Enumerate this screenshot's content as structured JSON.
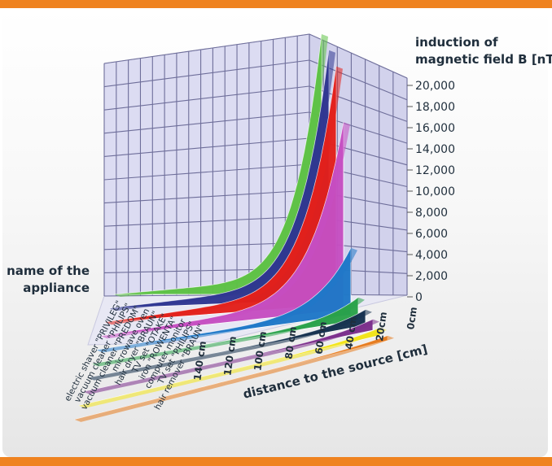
{
  "chart_data": {
    "type": "area",
    "title": "",
    "ylabel": "induction of magnetic field B [nT]",
    "xlabel": "distance to the source [cm]",
    "zlabel": "name of the appliance",
    "ylim": [
      0,
      20000
    ],
    "y_ticks": [
      "20,000",
      "18,000",
      "16,000",
      "14,000",
      "12,000",
      "10,000",
      "8,000",
      "6,000",
      "4,000",
      "2,000",
      "0"
    ],
    "x_ticks": [
      "0cm",
      "20cm",
      "40 cm",
      "60 cm",
      "80 cm",
      "100 cm",
      "120 cm",
      "140 cm"
    ],
    "grid": true,
    "series": [
      {
        "name": "electric shaver \"PRIVILEG\"",
        "color": "#5ec245",
        "peak": 20000
      },
      {
        "name": "vacuum cleaner \"PHILIPS\"",
        "color": "#2f3691",
        "peak": 20000
      },
      {
        "name": "vacuum cleaner \"PREDOM\"",
        "color": "#e3201b",
        "peak": 20000
      },
      {
        "name": "microwave oven",
        "color": "#c64fc2",
        "peak": 16500
      },
      {
        "name": "hair dryer \"BRAUN\"",
        "color": "#1f78c8",
        "peak": 6200
      },
      {
        "name": "TV set \"OTAKE\"",
        "color": "#2aa24a",
        "peak": 2200
      },
      {
        "name": "iron \"ROWENTA\"",
        "color": "#16324f",
        "peak": 1600
      },
      {
        "name": "computer monitor",
        "color": "#7c2f8c",
        "peak": 1200
      },
      {
        "name": "TV set \"PHILIPS\"",
        "color": "#f2e41a",
        "peak": 900
      },
      {
        "name": "hair remover \"BRAUN\"",
        "color": "#e67c1f",
        "peak": 600
      }
    ]
  }
}
